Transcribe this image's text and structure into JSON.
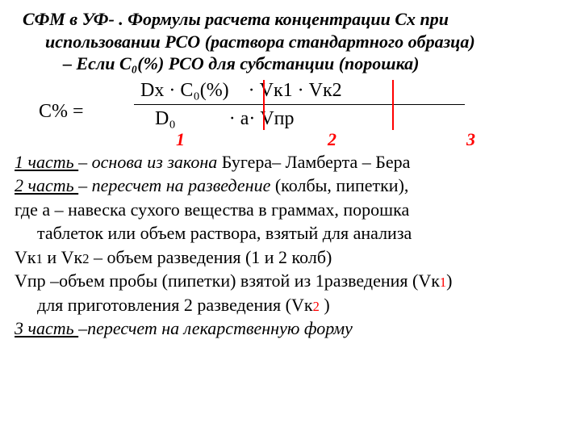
{
  "title": {
    "l1": "СФМ в УФ- . Формулы расчета концентрации  Сх при",
    "l2": "использовании РСО (раствора стандартного образца)",
    "l3": "– Если С₀(%) РСО для субстанции (порошка)"
  },
  "formula": {
    "lhs": "С% =",
    "numerator": "Dх · С₀(%)    · Vк1 · Vк2",
    "denominator": "   D₀           · а· Vпр",
    "part1": "1",
    "part2": "2",
    "part3": "3",
    "sep_color": "#ff0000",
    "num_color": "#ff0000"
  },
  "body": {
    "p1_u": "1 часть ",
    "p1_i": "– основа  из закона ",
    "p1_r": "Бугера– Ламберта – Бера",
    "p2_u": "2 часть ",
    "p2_i": "– пересчет на разведение ",
    "p2_r": "(колбы, пипетки),",
    "p3": "где а – навеска сухого вещества в граммах, порошка",
    "p3b": "таблеток или объем раствора, взятый для анализа",
    "p4a": "Vк",
    "p4a2": "1",
    "p4mid": " и Vк",
    "p4b2": "2",
    "p4r": " – объем  разведения (1 и 2 колб)",
    "p5a": "Vпр –объем пробы (пипетки)  взятой из 1разведения (Vк",
    "p5a2": "1",
    "p5b": ")",
    "p5c": "для приготовления  2 разведения (Vк",
    "p5c2": "2",
    "p5d": " )",
    "p6_u": "3 часть ",
    "p6_i": "–пересчет на лекарственную форму"
  }
}
